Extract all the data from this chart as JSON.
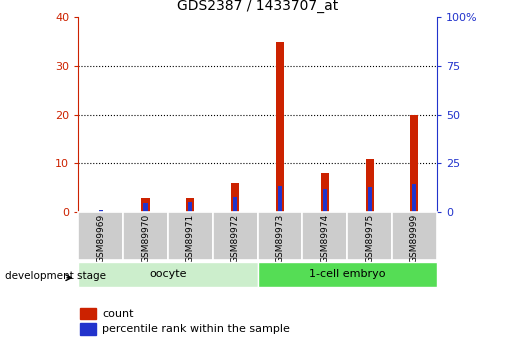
{
  "title": "GDS2387 / 1433707_at",
  "samples": [
    "GSM89969",
    "GSM89970",
    "GSM89971",
    "GSM89972",
    "GSM89973",
    "GSM89974",
    "GSM89975",
    "GSM89999"
  ],
  "count_values": [
    0,
    3,
    3,
    6,
    35,
    8,
    11,
    20
  ],
  "percentile_values": [
    1,
    4.5,
    5,
    8,
    13.5,
    12,
    13,
    14.5
  ],
  "left_ylim": [
    0,
    40
  ],
  "right_ylim": [
    0,
    100
  ],
  "left_yticks": [
    0,
    10,
    20,
    30,
    40
  ],
  "right_yticks": [
    0,
    25,
    50,
    75,
    100
  ],
  "right_yticklabels": [
    "0",
    "25",
    "50",
    "75",
    "100%"
  ],
  "bar_color": "#cc2200",
  "percentile_color": "#2233cc",
  "bg_color": "#ffffff",
  "oocyte_label": "oocyte",
  "embryo_label": "1-cell embryo",
  "oocyte_color": "#cceecc",
  "embryo_color": "#55dd55",
  "sample_bg_color": "#cccccc",
  "dev_stage_label": "development stage",
  "legend_count_label": "count",
  "legend_percentile_label": "percentile rank within the sample",
  "left_ylabel_color": "#cc2200",
  "right_ylabel_color": "#2233cc",
  "n_oocyte": 4,
  "n_embryo": 4
}
